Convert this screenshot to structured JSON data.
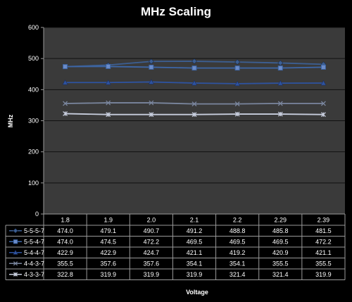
{
  "chart_data": {
    "type": "line",
    "title": "MHz Scaling",
    "xlabel": "Voltage",
    "ylabel": "MHz",
    "ylim": [
      0,
      600
    ],
    "yticks": [
      0,
      100,
      200,
      300,
      400,
      500,
      600
    ],
    "grid": true,
    "legend": "data-table",
    "categories": [
      "1.8",
      "1.9",
      "2.0",
      "2.1",
      "2.2",
      "2.29",
      "2.39"
    ],
    "series": [
      {
        "name": "5-5-5-7",
        "marker": "diamond",
        "color": "#3c5f93",
        "values": [
          474.0,
          479.1,
          490.7,
          491.2,
          488.8,
          485.8,
          481.5
        ],
        "labels": [
          "474.0",
          "479.1",
          "490.7",
          "491.2",
          "488.8",
          "485.8",
          "481.5"
        ]
      },
      {
        "name": "5-5-4-7",
        "marker": "square",
        "color": "#3d66a6",
        "values": [
          474.0,
          474.5,
          472.2,
          469.5,
          469.5,
          469.5,
          472.2
        ],
        "labels": [
          "474.0",
          "474.5",
          "472.2",
          "469.5",
          "469.5",
          "469.5",
          "472.2"
        ]
      },
      {
        "name": "5-4-4-7",
        "marker": "triangle",
        "color": "#2e53a0",
        "values": [
          422.9,
          422.9,
          424.7,
          421.1,
          419.2,
          420.9,
          421.1
        ],
        "labels": [
          "422.9",
          "422.9",
          "424.7",
          "421.1",
          "419.2",
          "420.9",
          "421.1"
        ]
      },
      {
        "name": "4-4-3-7",
        "marker": "x",
        "color": "#7a869e",
        "values": [
          355.5,
          357.6,
          357.6,
          354.1,
          354.1,
          355.5,
          355.5
        ],
        "labels": [
          "355.5",
          "357.6",
          "357.6",
          "354.1",
          "354.1",
          "355.5",
          "355.5"
        ]
      },
      {
        "name": "4-3-3-7",
        "marker": "star",
        "color": "#c8cede",
        "values": [
          322.8,
          319.9,
          319.9,
          319.9,
          321.4,
          321.4,
          319.9
        ],
        "labels": [
          "322.8",
          "319.9",
          "319.9",
          "319.9",
          "321.4",
          "321.4",
          "319.9"
        ]
      }
    ]
  }
}
